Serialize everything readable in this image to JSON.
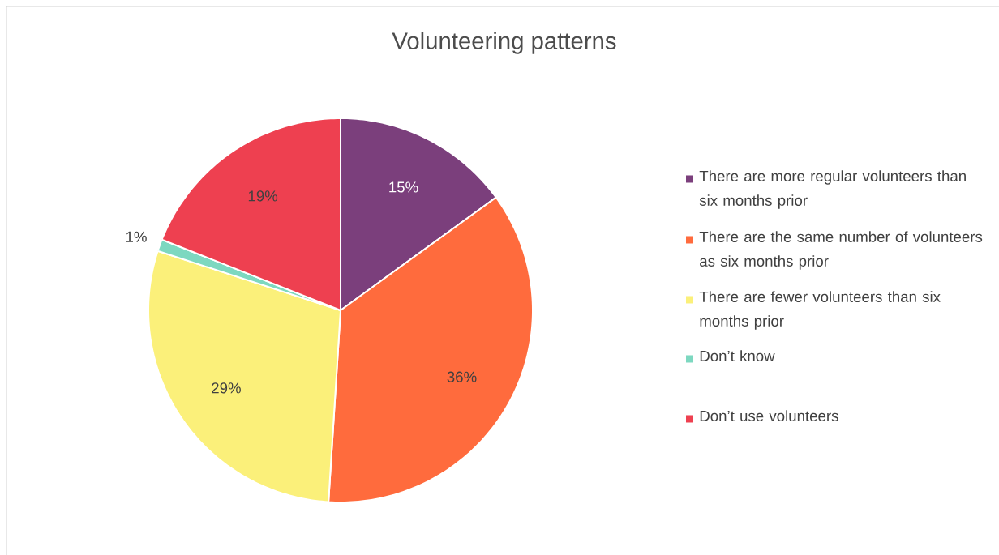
{
  "chart_data": {
    "type": "pie",
    "title": "Volunteering patterns",
    "categories": [
      "There are more regular volunteers than six months prior",
      "There are the same number of volunteers as six months prior",
      "There are fewer volunteers than six months prior",
      "Don’t know",
      "Don’t use volunteers"
    ],
    "values": [
      15,
      36,
      29,
      1,
      19
    ],
    "value_labels": [
      "15%",
      "36%",
      "29%",
      "1%",
      "19%"
    ],
    "colors": [
      "#7b3f7c",
      "#ff6b3d",
      "#fbf07a",
      "#7dd8c0",
      "#ee4050"
    ],
    "legend": "right"
  }
}
